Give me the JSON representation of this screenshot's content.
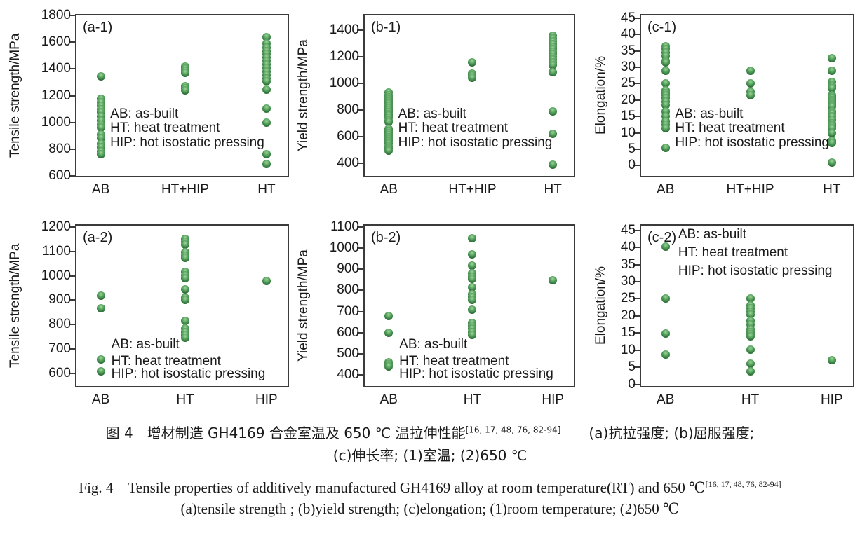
{
  "figure": {
    "dot_color": "#2e7139",
    "frame_color": "#3b3b3b",
    "background": "#ffffff"
  },
  "legend": {
    "lines": [
      "AB: as-built",
      "HT: heat treatment",
      "HIP: hot isostatic pressing"
    ]
  },
  "chart_data": [
    {
      "id": "a-1",
      "type": "scatter",
      "panel_label": "(a-1)",
      "ylabel": "Tensile strength/MPa",
      "ylim": [
        600,
        1800
      ],
      "yticks": [
        600,
        800,
        1000,
        1200,
        1400,
        1600,
        1800
      ],
      "categories": [
        "AB",
        "HT+HIP",
        "HT"
      ],
      "series": [
        {
          "name": "AB",
          "values": [
            1345,
            1175,
            1150,
            1125,
            1100,
            1075,
            1045,
            1015,
            985,
            960,
            910,
            885,
            840,
            815,
            785,
            760
          ]
        },
        {
          "name": "HT+HIP",
          "values": [
            1415,
            1400,
            1388,
            1372,
            1272,
            1255,
            1240
          ]
        },
        {
          "name": "HT",
          "values": [
            1640,
            1590,
            1560,
            1535,
            1510,
            1485,
            1460,
            1435,
            1405,
            1380,
            1355,
            1330,
            1305,
            1245,
            1105,
            1000,
            760,
            690
          ]
        }
      ]
    },
    {
      "id": "b-1",
      "type": "scatter",
      "panel_label": "(b-1)",
      "ylabel": "Yield strength/MPa",
      "ylim": [
        305,
        1510
      ],
      "yticks": [
        400,
        600,
        800,
        1000,
        1200,
        1400
      ],
      "categories": [
        "AB",
        "HT+HIP",
        "HT"
      ],
      "series": [
        {
          "name": "AB",
          "values": [
            930,
            912,
            896,
            880,
            864,
            848,
            832,
            816,
            800,
            785,
            770,
            755,
            740,
            722,
            710,
            658,
            642,
            626,
            610,
            595,
            578,
            562,
            545,
            528,
            510,
            492
          ]
        },
        {
          "name": "HT+HIP",
          "values": [
            1160,
            1072,
            1055,
            1040
          ]
        },
        {
          "name": "HT",
          "values": [
            1360,
            1335,
            1315,
            1295,
            1275,
            1255,
            1235,
            1218,
            1200,
            1180,
            1160,
            1135,
            1085,
            790,
            622,
            388
          ]
        }
      ]
    },
    {
      "id": "c-1",
      "type": "scatter",
      "panel_label": "(c-1)",
      "ylabel": "Elongation/%",
      "ylim": [
        -3.1,
        45.8
      ],
      "yticks": [
        0,
        5,
        10,
        15,
        20,
        25,
        30,
        35,
        40,
        45
      ],
      "categories": [
        "AB",
        "HT+HIP",
        "HT"
      ],
      "series": [
        {
          "name": "AB",
          "values": [
            36.5,
            35.5,
            34.5,
            33.5,
            32,
            31.5,
            29,
            25,
            23,
            22,
            21.5,
            20.5,
            19.5,
            18.5,
            16.5,
            15,
            13.5,
            12.5,
            11.5,
            5.5
          ]
        },
        {
          "name": "HT+HIP",
          "values": [
            29,
            25,
            22.5,
            21.5
          ]
        },
        {
          "name": "HT",
          "values": [
            32.8,
            29,
            25.5,
            24.5,
            24,
            23.5,
            21.5,
            21,
            20.5,
            20,
            19.5,
            19,
            18.5,
            18,
            16.5,
            16,
            15,
            14,
            13,
            12.5,
            12,
            11.5,
            10,
            7.5,
            7,
            1
          ]
        }
      ]
    },
    {
      "id": "a-2",
      "type": "scatter",
      "panel_label": "(a-2)",
      "ylabel": "Tensile strength/MPa",
      "ylim": [
        549,
        1205
      ],
      "yticks": [
        600,
        700,
        800,
        900,
        1000,
        1100,
        1200
      ],
      "categories": [
        "AB",
        "HT",
        "HIP"
      ],
      "series": [
        {
          "name": "AB",
          "values": [
            918,
            866,
            658,
            608
          ]
        },
        {
          "name": "HT",
          "values": [
            1150,
            1140,
            1128,
            1095,
            1082,
            1072,
            1015,
            1002,
            990,
            945,
            910,
            900,
            815,
            785,
            770,
            757,
            748
          ]
        },
        {
          "name": "HIP",
          "values": [
            980
          ]
        }
      ]
    },
    {
      "id": "b-2",
      "type": "scatter",
      "panel_label": "(b-2)",
      "ylabel": "Yield strength/MPa",
      "ylim": [
        348,
        1106
      ],
      "yticks": [
        400,
        500,
        600,
        700,
        800,
        900,
        1000,
        1100
      ],
      "categories": [
        "AB",
        "HT",
        "HIP"
      ],
      "series": [
        {
          "name": "AB",
          "values": [
            678,
            598,
            462,
            450,
            440
          ]
        },
        {
          "name": "HT",
          "values": [
            1048,
            970,
            918,
            882,
            866,
            855,
            815,
            782,
            768,
            756,
            708,
            645,
            634,
            618,
            602,
            590
          ]
        },
        {
          "name": "HIP",
          "values": [
            848
          ]
        }
      ]
    },
    {
      "id": "c-2",
      "type": "scatter",
      "panel_label": "(c-2)",
      "ylabel": "Elongation/%",
      "ylim": [
        -0.5,
        46.4
      ],
      "yticks": [
        0,
        5,
        10,
        15,
        20,
        25,
        30,
        35,
        40,
        45
      ],
      "categories": [
        "AB",
        "HT",
        "HIP"
      ],
      "series": [
        {
          "name": "AB",
          "values": [
            40.2,
            25.2,
            14.8,
            8.7
          ]
        },
        {
          "name": "HT",
          "values": [
            25.2,
            23,
            22.2,
            21.3,
            20.3,
            18.6,
            17.6,
            16,
            15.3,
            14.6,
            14,
            10.2,
            6,
            3.8
          ]
        },
        {
          "name": "HIP",
          "values": [
            7
          ]
        }
      ]
    }
  ],
  "caption": {
    "zh": {
      "line1_prefix": "图 4　增材制造 GH4169 合金室温及 650 ℃ 温拉伸性能",
      "refs": "[16, 17, 48, 76, 82-94]",
      "line1_suffix": "　　(a)抗拉强度; (b)屈服强度;",
      "line2": "(c)伸长率; (1)室温; (2)650 ℃"
    },
    "en": {
      "line1_prefix": "Fig. 4　Tensile properties of additively manufactured GH4169 alloy at room temperature(RT) and 650 ℃",
      "refs": "[16, 17, 48, 76, 82-94]",
      "line2": "(a)tensile strength ; (b)yield strength; (c)elongation; (1)room temperature; (2)650 ℃"
    }
  }
}
